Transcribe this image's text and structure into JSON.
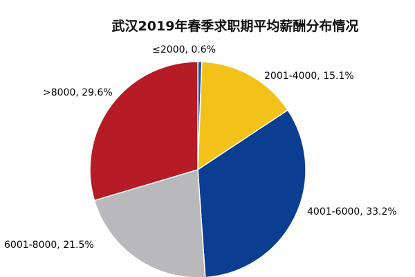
{
  "chart_data": {
    "type": "pie",
    "title": "武汉2019年春季求职期平均薪酬分布情况",
    "start_angle_deg": 90,
    "direction": "clockwise",
    "slices": [
      {
        "label": "≤2000",
        "value": 0.6,
        "display": "≤2000, 0.6%",
        "color": "#1F4E9E"
      },
      {
        "label": "2001-4000",
        "value": 15.1,
        "display": "2001-4000, 15.1%",
        "color": "#F2C21B"
      },
      {
        "label": "4001-6000",
        "value": 33.2,
        "display": "4001-6000, 33.2%",
        "color": "#0B3D91"
      },
      {
        "label": "6001-8000",
        "value": 21.5,
        "display": "6001-8000, 21.5%",
        "color": "#B9B9BC"
      },
      {
        "label": ">8000",
        "value": 29.6,
        "display": ">8000, 29.6%",
        "color": "#B51C25"
      }
    ],
    "legend": "none",
    "data_labels": "outside"
  }
}
